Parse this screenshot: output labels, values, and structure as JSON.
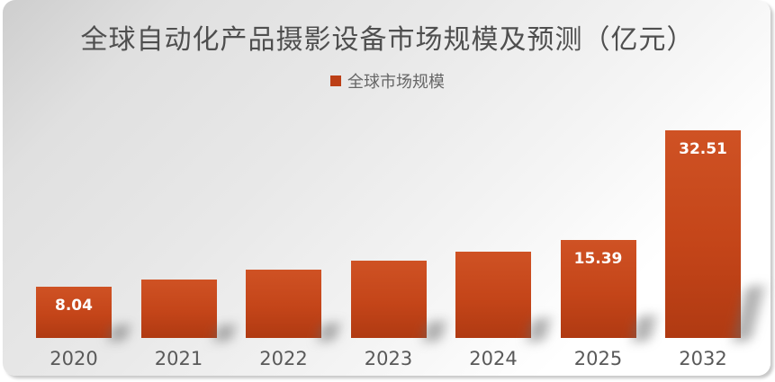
{
  "chart_data": {
    "type": "bar",
    "title": "全球自动化产品摄影设备市场规模及预测（亿元）",
    "categories": [
      "2020",
      "2021",
      "2022",
      "2023",
      "2024",
      "2025",
      "2032"
    ],
    "series": [
      {
        "name": "全球市场规模",
        "values": [
          8.04,
          9.2,
          10.7,
          12.1,
          13.5,
          15.39,
          32.51
        ]
      }
    ],
    "bar_labels": [
      "8.04",
      "",
      "",
      "",
      "",
      "15.39",
      "32.51"
    ],
    "xlabel": "",
    "ylabel": "",
    "ylim": [
      0,
      32.51
    ],
    "grid": false,
    "axes_hidden": true,
    "legend_position": "top-center"
  },
  "colors": {
    "bar_gradient_top": "#cf5224",
    "bar_gradient_bottom": "#b03a12",
    "legend_marker": "#bc3f16",
    "title_text": "#4f4f4f",
    "axis_text": "#595959",
    "bar_label_text": "#ffffff",
    "panel_gradient_dark": "#cecece",
    "panel_gradient_light": "#ffffff"
  }
}
